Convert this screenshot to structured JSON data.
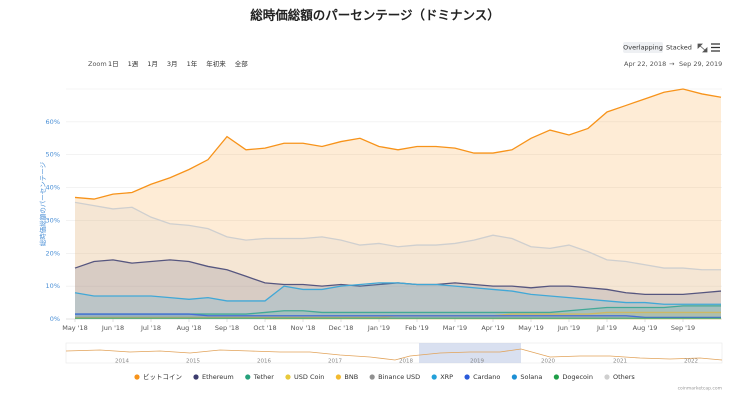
{
  "chart_data": {
    "type": "area",
    "title": "総時価総額のパーセンテージ（ドミナンス）",
    "y_label": "総時価総額のパーセンテージ",
    "mode_buttons": [
      "Overlapping",
      "Stacked"
    ],
    "zoom_label": "Zoom",
    "zoom_buttons": [
      "1日",
      "1週",
      "1月",
      "3月",
      "1年",
      "年初来",
      "全部"
    ],
    "range": {
      "from": "Apr 22, 2018",
      "arrow": "→",
      "to": "Sep 29, 2019"
    },
    "watermark": "coinmarketcap.com",
    "navigator_years": [
      "2014",
      "2015",
      "2016",
      "2017",
      "2018",
      "2019",
      "2020",
      "2021",
      "2022"
    ],
    "categories": [
      "May '18",
      null,
      "Jun '18",
      null,
      "Jul '18",
      null,
      "Aug '18",
      null,
      "Sep '18",
      null,
      "Oct '18",
      null,
      "Nov '18",
      null,
      "Dec '18",
      null,
      "Jan '19",
      null,
      "Feb '19",
      null,
      "Mar '19",
      null,
      "Apr '19",
      null,
      "May '19",
      null,
      "Jun '19",
      null,
      "Jul '19",
      null,
      "Aug '19",
      null,
      "Sep '19",
      null,
      null
    ],
    "ylim": [
      0,
      70
    ],
    "yticks": [
      {
        "value": 0,
        "label": "0%"
      },
      {
        "value": 10,
        "label": "10%"
      },
      {
        "value": 20,
        "label": "20%"
      },
      {
        "value": 30,
        "label": "30%"
      },
      {
        "value": 40,
        "label": "40%"
      },
      {
        "value": 50,
        "label": "50%"
      },
      {
        "value": 60,
        "label": "60%"
      }
    ],
    "grid": true,
    "series": [
      {
        "name": "ビットコイン",
        "color": "#f7931a",
        "values": [
          37,
          36.5,
          38,
          38.5,
          41,
          43,
          45.5,
          48.5,
          55.5,
          51.5,
          52,
          53.5,
          53.5,
          52.5,
          54,
          55,
          52.5,
          51.5,
          52.5,
          52.5,
          52,
          50.5,
          50.5,
          51.5,
          55,
          57.5,
          56,
          58,
          63,
          65,
          67,
          69,
          70,
          68.5,
          67.5
        ]
      },
      {
        "name": "Ethereum",
        "color": "#3c3c6e",
        "values": [
          15.5,
          17.5,
          18,
          17,
          17.5,
          18,
          17.5,
          16,
          15,
          13,
          11,
          10.5,
          10.5,
          10,
          10.5,
          10,
          10.5,
          11,
          10.5,
          10.5,
          11,
          10.5,
          10,
          10,
          9.5,
          10,
          10,
          9.5,
          9,
          8,
          7.5,
          7.5,
          7.5,
          8,
          8.5
        ]
      },
      {
        "name": "Tether",
        "color": "#26a17b",
        "values": [
          1.5,
          1.5,
          1.5,
          1.5,
          1.5,
          1.5,
          1.5,
          1.5,
          1.5,
          1.5,
          2,
          2.5,
          2.5,
          2,
          2,
          2,
          2,
          2,
          2,
          2,
          2,
          2,
          2,
          2,
          2,
          2,
          2.5,
          3,
          3.5,
          3.5,
          3.5,
          3.5,
          4,
          4,
          4
        ]
      },
      {
        "name": "USD Coin",
        "color": "#e8c93b",
        "values": [
          null,
          null,
          null,
          null,
          null,
          null,
          null,
          null,
          null,
          null,
          0.1,
          0.1,
          0.1,
          0.1,
          0.1,
          0.1,
          0.1,
          0.1,
          0.1,
          0.1,
          0.1,
          0.1,
          0.1,
          0.1,
          0.1,
          0.1,
          0.1,
          0.1,
          0.1,
          0.1,
          0.1,
          0.1,
          0.1,
          0.1,
          0.1
        ]
      },
      {
        "name": "BNB",
        "color": "#f3ba2f",
        "values": [
          0.5,
          0.5,
          0.5,
          0.5,
          0.5,
          0.5,
          0.5,
          0.5,
          0.5,
          0.5,
          0.5,
          0.5,
          0.5,
          0.5,
          0.5,
          0.5,
          0.5,
          1,
          1,
          1,
          1,
          1,
          1,
          1.5,
          1.5,
          1.5,
          1.5,
          1.5,
          2,
          2,
          2,
          2,
          2,
          2,
          2
        ]
      },
      {
        "name": "Binance USD",
        "color": "#909090",
        "values": [
          null,
          null,
          null,
          null,
          null,
          null,
          null,
          null,
          null,
          null,
          null,
          null,
          null,
          null,
          null,
          null,
          null,
          null,
          null,
          null,
          null,
          null,
          null,
          null,
          null,
          null,
          null,
          null,
          null,
          null,
          null,
          null,
          null,
          null,
          null
        ]
      },
      {
        "name": "XRP",
        "color": "#23a0d9",
        "values": [
          8,
          7,
          7,
          7,
          7,
          6.5,
          6,
          6.5,
          5.5,
          5.5,
          5.5,
          10,
          9,
          9,
          10,
          10.5,
          11,
          11,
          10.5,
          10.5,
          10,
          9.5,
          9,
          8.5,
          7.5,
          7,
          6.5,
          6,
          5.5,
          5,
          5,
          4.5,
          4.5,
          4.5,
          4.5
        ]
      },
      {
        "name": "Cardano",
        "color": "#2a5ada",
        "values": [
          1.5,
          1.5,
          1.5,
          1.5,
          1.5,
          1.5,
          1.5,
          1,
          1,
          1,
          1,
          1,
          1,
          1,
          1,
          1,
          1,
          1,
          1,
          1,
          1,
          1,
          1,
          1,
          1,
          1,
          1,
          1,
          1,
          1,
          0.5,
          0.5,
          0.5,
          0.5,
          0.5
        ]
      },
      {
        "name": "Solana",
        "color": "#1c8fd4",
        "values": [
          null,
          null,
          null,
          null,
          null,
          null,
          null,
          null,
          null,
          null,
          null,
          null,
          null,
          null,
          null,
          null,
          null,
          null,
          null,
          null,
          null,
          null,
          null,
          null,
          null,
          null,
          null,
          null,
          null,
          null,
          null,
          null,
          null,
          null,
          null
        ]
      },
      {
        "name": "Dogecoin",
        "color": "#1f9e48",
        "values": [
          0.2,
          0.2,
          0.2,
          0.2,
          0.2,
          0.2,
          0.2,
          0.2,
          0.2,
          0.2,
          0.2,
          0.2,
          0.2,
          0.2,
          0.2,
          0.2,
          0.2,
          0.2,
          0.2,
          0.2,
          0.2,
          0.2,
          0.2,
          0.2,
          0.2,
          0.2,
          0.2,
          0.2,
          0.2,
          0.2,
          0.2,
          0.2,
          0.2,
          0.2,
          0.2
        ]
      },
      {
        "name": "Others",
        "color": "#cfcfcf",
        "values": [
          35.5,
          34.5,
          33.5,
          34,
          31,
          29,
          28.5,
          27.5,
          25,
          24,
          24.5,
          24.5,
          24.5,
          25,
          24,
          22.5,
          23,
          22,
          22.5,
          22.5,
          23,
          24,
          25.5,
          24.5,
          22,
          21.5,
          22.5,
          20.5,
          18,
          17.5,
          16.5,
          15.5,
          15.5,
          15,
          15
        ]
      }
    ]
  }
}
